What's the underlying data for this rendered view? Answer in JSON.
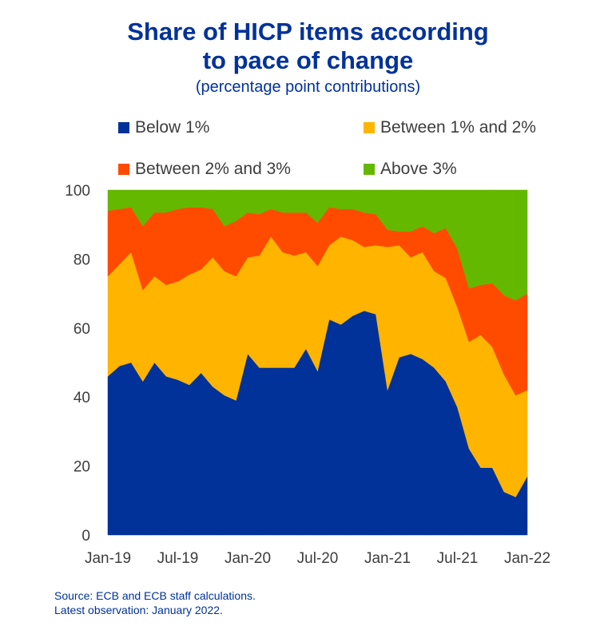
{
  "title_line1": "Share of HICP items according",
  "title_line2": "to pace of change",
  "subtitle": "(percentage point contributions)",
  "source_line1": "Source: ECB and ECB staff calculations.",
  "source_line2": "Latest observation: January 2022.",
  "chart_data": {
    "type": "area",
    "stacked": true,
    "title": "Share of HICP items according to pace of change",
    "subtitle": "(percentage point contributions)",
    "xlabel": "",
    "ylabel": "",
    "ylim": [
      0,
      100
    ],
    "yticks": [
      0,
      20,
      40,
      60,
      80,
      100
    ],
    "xtick_labels": [
      "Jan-19",
      "Jul-19",
      "Jan-20",
      "Jul-20",
      "Jan-21",
      "Jul-21",
      "Jan-22"
    ],
    "legend_position": "top",
    "grid": false,
    "x": [
      "Jan-19",
      "Feb-19",
      "Mar-19",
      "Apr-19",
      "May-19",
      "Jun-19",
      "Jul-19",
      "Aug-19",
      "Sep-19",
      "Oct-19",
      "Nov-19",
      "Dec-19",
      "Jan-20",
      "Feb-20",
      "Mar-20",
      "Apr-20",
      "May-20",
      "Jun-20",
      "Jul-20",
      "Aug-20",
      "Sep-20",
      "Oct-20",
      "Nov-20",
      "Dec-20",
      "Jan-21",
      "Feb-21",
      "Mar-21",
      "Apr-21",
      "May-21",
      "Jun-21",
      "Jul-21",
      "Aug-21",
      "Sep-21",
      "Oct-21",
      "Nov-21",
      "Dec-21",
      "Jan-22"
    ],
    "series": [
      {
        "name": "Below 1%",
        "color": "#003299",
        "values": [
          46,
          49,
          50,
          44.5,
          50,
          46,
          45,
          43.5,
          47,
          43,
          40.5,
          39,
          52.5,
          48.5,
          48.5,
          48.5,
          48.5,
          54,
          47.5,
          62.5,
          61,
          63.5,
          65,
          64,
          42,
          51.5,
          52.5,
          51,
          48.5,
          44.5,
          37,
          25,
          19.5,
          19.5,
          12.5,
          11,
          17
        ]
      },
      {
        "name": "Between 1% and 2%",
        "color": "#FFB400",
        "values": [
          29,
          29.5,
          32,
          26.5,
          25,
          26.5,
          28.5,
          32,
          30,
          37.5,
          36,
          36,
          28,
          32.5,
          38,
          33.5,
          32.5,
          28,
          30.5,
          21.5,
          25.5,
          22,
          18.5,
          20,
          41.5,
          32.5,
          28,
          31,
          28,
          30,
          29,
          31,
          38.5,
          35,
          34,
          29.5,
          25
        ]
      },
      {
        "name": "Between 2% and 3%",
        "color": "#FF4B00",
        "values": [
          19,
          16,
          13,
          18.5,
          18.5,
          21,
          21,
          19.5,
          18,
          14,
          13,
          16,
          13,
          12,
          8,
          11.5,
          12.5,
          11.5,
          12.5,
          11,
          8,
          9,
          10,
          9,
          5,
          4,
          7.5,
          7.5,
          11,
          14.5,
          17,
          15.5,
          14.5,
          18.5,
          23,
          27.5,
          28
        ]
      },
      {
        "name": "Above 3%",
        "color": "#65B800",
        "values": [
          6,
          5.5,
          5,
          10.5,
          6.5,
          6.5,
          5.5,
          5,
          5,
          5.5,
          10.5,
          9,
          6.5,
          7,
          5.5,
          6.5,
          6.5,
          6.5,
          9.5,
          5,
          5.5,
          5.5,
          6.5,
          7,
          11.5,
          12,
          12,
          10.5,
          12.5,
          11,
          17,
          28.5,
          27.5,
          27,
          30.5,
          32,
          30
        ]
      }
    ]
  }
}
